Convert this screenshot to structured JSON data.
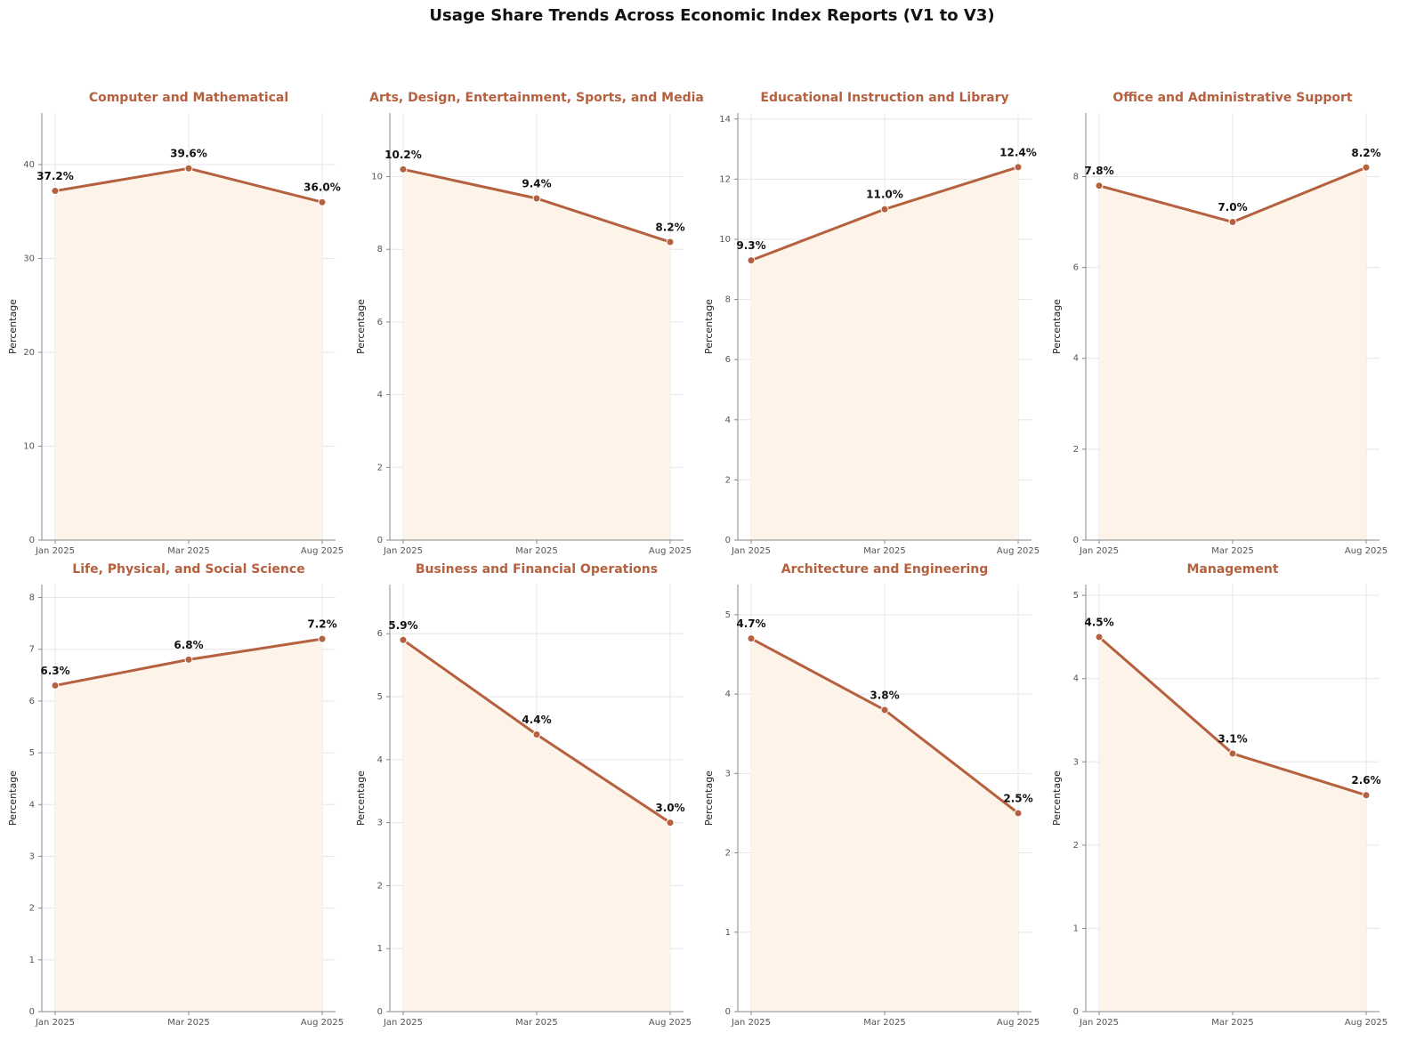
{
  "title": "Usage Share Trends Across Economic Index Reports (V1 to V3)",
  "chart_data": [
    {
      "type": "line",
      "title": "Computer and Mathematical",
      "categories": [
        "Jan 2025",
        "Mar 2025",
        "Aug 2025"
      ],
      "values": [
        37.2,
        39.6,
        36.0
      ],
      "value_labels": [
        "37.2%",
        "39.6%",
        "36.0%"
      ],
      "ylabel": "Percentage",
      "ylim": [
        0,
        45.5
      ],
      "yticks": [
        0,
        10,
        20,
        30,
        40
      ],
      "color": "#b5603f",
      "fill_color": "#fdf3e8",
      "grid": true
    },
    {
      "type": "line",
      "title": "Arts, Design, Entertainment, Sports, and Media",
      "categories": [
        "Jan 2025",
        "Mar 2025",
        "Aug 2025"
      ],
      "values": [
        10.2,
        9.4,
        8.2
      ],
      "value_labels": [
        "10.2%",
        "9.4%",
        "8.2%"
      ],
      "ylabel": "Percentage",
      "ylim": [
        0,
        11.75
      ],
      "yticks": [
        0,
        2,
        4,
        6,
        8,
        10
      ],
      "color": "#b5603f",
      "fill_color": "#fdf3e8",
      "grid": true
    },
    {
      "type": "line",
      "title": "Educational Instruction and Library",
      "categories": [
        "Jan 2025",
        "Mar 2025",
        "Aug 2025"
      ],
      "values": [
        9.3,
        11.0,
        12.4
      ],
      "value_labels": [
        "9.3%",
        "11.0%",
        "12.4%"
      ],
      "ylabel": "Percentage",
      "ylim": [
        0,
        14.2
      ],
      "yticks": [
        0,
        2,
        4,
        6,
        8,
        10,
        12,
        14
      ],
      "color": "#b5603f",
      "fill_color": "#fdf3e8",
      "grid": true
    },
    {
      "type": "line",
      "title": "Office and Administrative Support",
      "categories": [
        "Jan 2025",
        "Mar 2025",
        "Aug 2025"
      ],
      "values": [
        7.8,
        7.0,
        8.2
      ],
      "value_labels": [
        "7.8%",
        "7.0%",
        "8.2%"
      ],
      "ylabel": "Percentage",
      "ylim": [
        0,
        9.4
      ],
      "yticks": [
        0,
        2,
        4,
        6,
        8
      ],
      "color": "#b5603f",
      "fill_color": "#fdf3e8",
      "grid": true
    },
    {
      "type": "line",
      "title": "Life, Physical, and Social Science",
      "categories": [
        "Jan 2025",
        "Mar 2025",
        "Aug 2025"
      ],
      "values": [
        6.3,
        6.8,
        7.2
      ],
      "value_labels": [
        "6.3%",
        "6.8%",
        "7.2%"
      ],
      "ylabel": "Percentage",
      "ylim": [
        0,
        8.25
      ],
      "yticks": [
        0,
        1,
        2,
        3,
        4,
        5,
        6,
        7,
        8
      ],
      "color": "#b5603f",
      "fill_color": "#fdf3e8",
      "grid": true
    },
    {
      "type": "line",
      "title": "Business and Financial Operations",
      "categories": [
        "Jan 2025",
        "Mar 2025",
        "Aug 2025"
      ],
      "values": [
        5.9,
        4.4,
        3.0
      ],
      "value_labels": [
        "5.9%",
        "4.4%",
        "3.0%"
      ],
      "ylabel": "Percentage",
      "ylim": [
        0,
        6.78
      ],
      "yticks": [
        0,
        1,
        2,
        3,
        4,
        5,
        6
      ],
      "color": "#b5603f",
      "fill_color": "#fdf3e8",
      "grid": true
    },
    {
      "type": "line",
      "title": "Architecture and Engineering",
      "categories": [
        "Jan 2025",
        "Mar 2025",
        "Aug 2025"
      ],
      "values": [
        4.7,
        3.8,
        2.5
      ],
      "value_labels": [
        "4.7%",
        "3.8%",
        "2.5%"
      ],
      "ylabel": "Percentage",
      "ylim": [
        0,
        5.38
      ],
      "yticks": [
        0,
        1,
        2,
        3,
        4,
        5
      ],
      "color": "#b5603f",
      "fill_color": "#fdf3e8",
      "grid": true
    },
    {
      "type": "line",
      "title": "Management",
      "categories": [
        "Jan 2025",
        "Mar 2025",
        "Aug 2025"
      ],
      "values": [
        4.5,
        3.1,
        2.6
      ],
      "value_labels": [
        "4.5%",
        "3.1%",
        "2.6%"
      ],
      "ylabel": "Percentage",
      "ylim": [
        0,
        5.13
      ],
      "yticks": [
        0,
        1,
        2,
        3,
        4,
        5
      ],
      "color": "#b5603f",
      "fill_color": "#fdf3e8",
      "grid": true
    }
  ]
}
